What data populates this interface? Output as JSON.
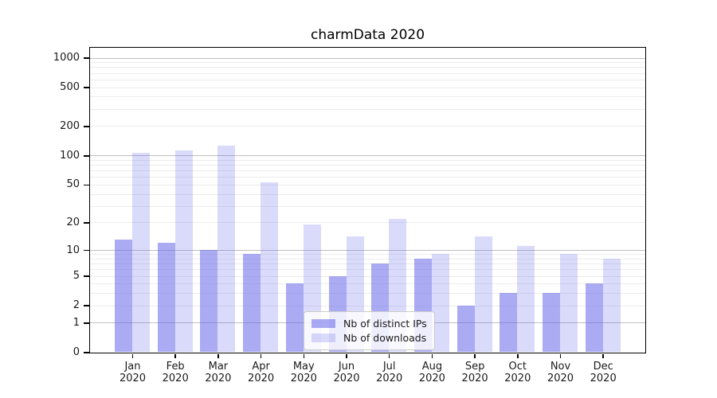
{
  "title": "charmData 2020",
  "colors": {
    "bar_base": "#6666eb",
    "bar_dark": "rgba(102,102,235,0.55)",
    "bar_light": "rgba(102,102,235,0.24)",
    "grid_major": "#bfbfbf",
    "grid_minor": "#ececec",
    "spine": "#000000",
    "text": "#1a1a1a",
    "legend_border": "#cccccc",
    "legend_background": "rgba(255,255,255,0.8)"
  },
  "legend": {
    "items": [
      {
        "label": "Nb of distinct IPs",
        "swatch": "rgba(102,102,235,0.55)"
      },
      {
        "label": "Nb of downloads",
        "swatch": "rgba(102,102,235,0.24)"
      }
    ]
  },
  "chart_data": {
    "type": "bar",
    "title": "charmData 2020",
    "xlabel": "",
    "ylabel": "",
    "categories": [
      "Jan 2020",
      "Feb 2020",
      "Mar 2020",
      "Apr 2020",
      "May 2020",
      "Jun 2020",
      "Jul 2020",
      "Aug 2020",
      "Sep 2020",
      "Oct 2020",
      "Nov 2020",
      "Dec 2020"
    ],
    "category_month_labels": [
      "Jan",
      "Feb",
      "Mar",
      "Apr",
      "May",
      "Jun",
      "Jul",
      "Aug",
      "Sep",
      "Oct",
      "Nov",
      "Dec"
    ],
    "category_year_label": "2020",
    "series": [
      {
        "name": "Nb of distinct IPs",
        "color": "rgba(102,102,235,0.55)",
        "values": [
          13,
          12,
          10,
          9,
          4,
          5,
          7,
          8,
          2,
          3,
          3,
          4
        ]
      },
      {
        "name": "Nb of downloads",
        "color": "rgba(102,102,235,0.24)",
        "values": [
          106,
          113,
          127,
          53,
          19,
          14,
          22,
          9,
          14,
          11,
          9,
          8
        ]
      }
    ],
    "yscale": "symlog (log10 of 1+value)",
    "yticks": [
      0,
      1,
      2,
      5,
      10,
      20,
      50,
      100,
      200,
      500,
      1000
    ],
    "ylim": [
      0,
      1274
    ],
    "grid": "horizontal, minor light + major at powers of 10",
    "legend_position": "inside lower center"
  }
}
